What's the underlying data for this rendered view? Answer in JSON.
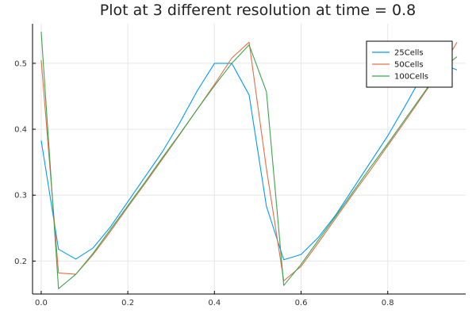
{
  "chart_data": {
    "type": "line",
    "title": "Plot at 3 different resolution at time = 0.8",
    "xlabel": "",
    "ylabel": "",
    "xlim": [
      -0.02,
      0.98
    ],
    "ylim": [
      0.15,
      0.56
    ],
    "x_ticks": [
      0.0,
      0.2,
      0.4,
      0.6,
      0.8
    ],
    "x_tick_labels": [
      "0.0",
      "0.2",
      "0.4",
      "0.6",
      "0.8"
    ],
    "y_ticks": [
      0.2,
      0.3,
      0.4,
      0.5
    ],
    "y_tick_labels": [
      "0.2",
      "0.3",
      "0.4",
      "0.5"
    ],
    "grid": true,
    "legend_position": "top-right",
    "series": [
      {
        "name": "25Cells",
        "color": "#009af9",
        "x": [
          0.0,
          0.04,
          0.08,
          0.12,
          0.16,
          0.2,
          0.24,
          0.28,
          0.32,
          0.36,
          0.4,
          0.44,
          0.48,
          0.52,
          0.56,
          0.6,
          0.64,
          0.68,
          0.72,
          0.76,
          0.8,
          0.84,
          0.88,
          0.92,
          0.96
        ],
        "y": [
          0.383,
          0.218,
          0.203,
          0.22,
          0.252,
          0.29,
          0.328,
          0.366,
          0.41,
          0.458,
          0.5,
          0.5,
          0.452,
          0.283,
          0.202,
          0.21,
          0.236,
          0.27,
          0.31,
          0.35,
          0.39,
          0.435,
          0.482,
          0.5,
          0.49
        ]
      },
      {
        "name": "50Cells",
        "color": "#e26f46",
        "x": [
          0.0,
          0.04,
          0.08,
          0.12,
          0.16,
          0.2,
          0.24,
          0.28,
          0.32,
          0.36,
          0.4,
          0.44,
          0.48,
          0.52,
          0.56,
          0.6,
          0.64,
          0.68,
          0.72,
          0.76,
          0.8,
          0.84,
          0.88,
          0.92,
          0.96
        ],
        "y": [
          0.505,
          0.182,
          0.18,
          0.21,
          0.245,
          0.282,
          0.318,
          0.355,
          0.392,
          0.43,
          0.468,
          0.508,
          0.532,
          0.34,
          0.17,
          0.192,
          0.228,
          0.265,
          0.302,
          0.338,
          0.375,
          0.412,
          0.45,
          0.488,
          0.532
        ]
      },
      {
        "name": "100Cells",
        "color": "#3da44d",
        "x": [
          0.0,
          0.04,
          0.08,
          0.12,
          0.16,
          0.2,
          0.24,
          0.28,
          0.32,
          0.36,
          0.4,
          0.44,
          0.48,
          0.52,
          0.56,
          0.6,
          0.64,
          0.68,
          0.72,
          0.76,
          0.8,
          0.84,
          0.88,
          0.92,
          0.96
        ],
        "y": [
          0.548,
          0.158,
          0.18,
          0.212,
          0.248,
          0.284,
          0.32,
          0.357,
          0.393,
          0.43,
          0.466,
          0.5,
          0.528,
          0.457,
          0.163,
          0.195,
          0.232,
          0.268,
          0.305,
          0.342,
          0.378,
          0.415,
          0.452,
          0.489,
          0.51
        ]
      }
    ]
  }
}
